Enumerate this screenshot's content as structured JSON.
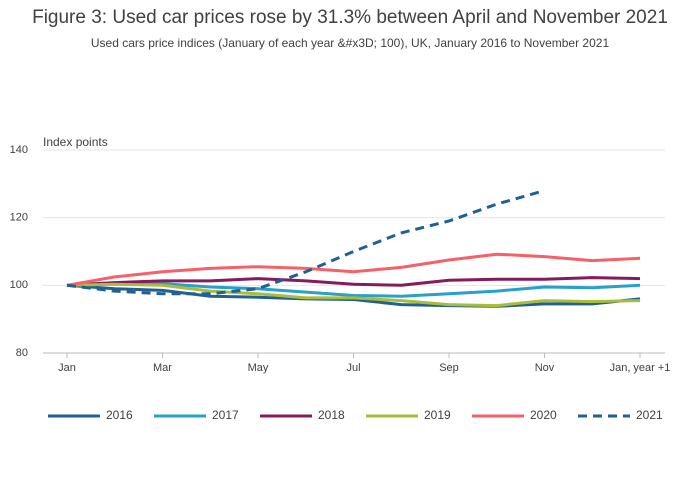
{
  "chart_data": {
    "type": "line",
    "title": "Figure 3: Used car prices rose by 31.3% between April and November 2021",
    "subtitle": "Used cars price indices (January of each year &#x3D; 100), UK, January 2016 to November 2021",
    "y_label": "Index points",
    "categories": [
      "Jan",
      null,
      "Mar",
      null,
      "May",
      null,
      "Jul",
      null,
      "Sep",
      null,
      "Nov",
      null,
      "Jan, year +1"
    ],
    "ylim": [
      80,
      140
    ],
    "yticks": [
      80,
      100,
      120,
      140
    ],
    "grid": true,
    "legend": "bottom",
    "series": [
      {
        "name": "2016",
        "color": "#206095",
        "style": "solid",
        "values": [
          100,
          99,
          98.5,
          96.8,
          96.5,
          96,
          95.8,
          94.3,
          94,
          93.8,
          94.5,
          94.5,
          96
        ]
      },
      {
        "name": "2017",
        "color": "#27a0cc",
        "style": "solid",
        "values": [
          100,
          100.5,
          100.5,
          99.5,
          99,
          98,
          97,
          96.8,
          97.5,
          98.3,
          99.5,
          99.3,
          100
        ]
      },
      {
        "name": "2018",
        "color": "#871a5b",
        "style": "solid",
        "values": [
          100,
          100.8,
          101.3,
          101.3,
          102,
          101.3,
          100.3,
          100,
          101.5,
          101.8,
          101.8,
          102.3,
          102
        ]
      },
      {
        "name": "2019",
        "color": "#a8bd3a",
        "style": "solid",
        "values": [
          100,
          100.3,
          100,
          98.3,
          97.5,
          96.3,
          96.3,
          95.5,
          94.3,
          94,
          95.5,
          95.2,
          95.5
        ]
      },
      {
        "name": "2020",
        "color": "#f66068",
        "style": "solid",
        "values": [
          100,
          102.5,
          104,
          105,
          105.5,
          105,
          104,
          105.3,
          107.5,
          109.2,
          108.5,
          107.3,
          108
        ]
      },
      {
        "name": "2021",
        "color": "#206095",
        "style": "dashed",
        "values": [
          100,
          98.3,
          97.5,
          97.5,
          99,
          104,
          110,
          115.5,
          119,
          124,
          128,
          null,
          null
        ]
      }
    ]
  }
}
